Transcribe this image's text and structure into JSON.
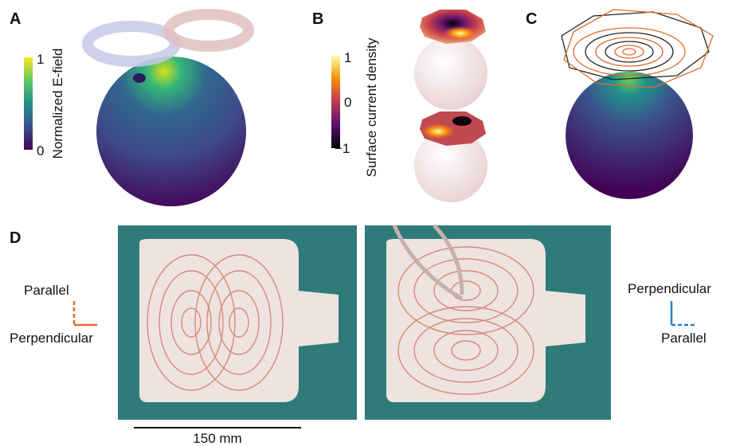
{
  "panels": {
    "A": {
      "label": "A",
      "colorbar": {
        "title": "Normalized E-field",
        "ticks": [
          "1",
          "0"
        ]
      }
    },
    "B": {
      "label": "B",
      "colorbar": {
        "title": "Surface current density",
        "ticks": [
          "1",
          "0",
          "−1"
        ]
      }
    },
    "C": {
      "label": "C"
    },
    "D": {
      "label": "D",
      "left_legend": {
        "top": "Parallel",
        "bottom": "Perpendicular"
      },
      "right_legend": {
        "top": "Perpendicular",
        "bottom": "Parallel"
      },
      "scale_bar": "150 mm"
    }
  }
}
